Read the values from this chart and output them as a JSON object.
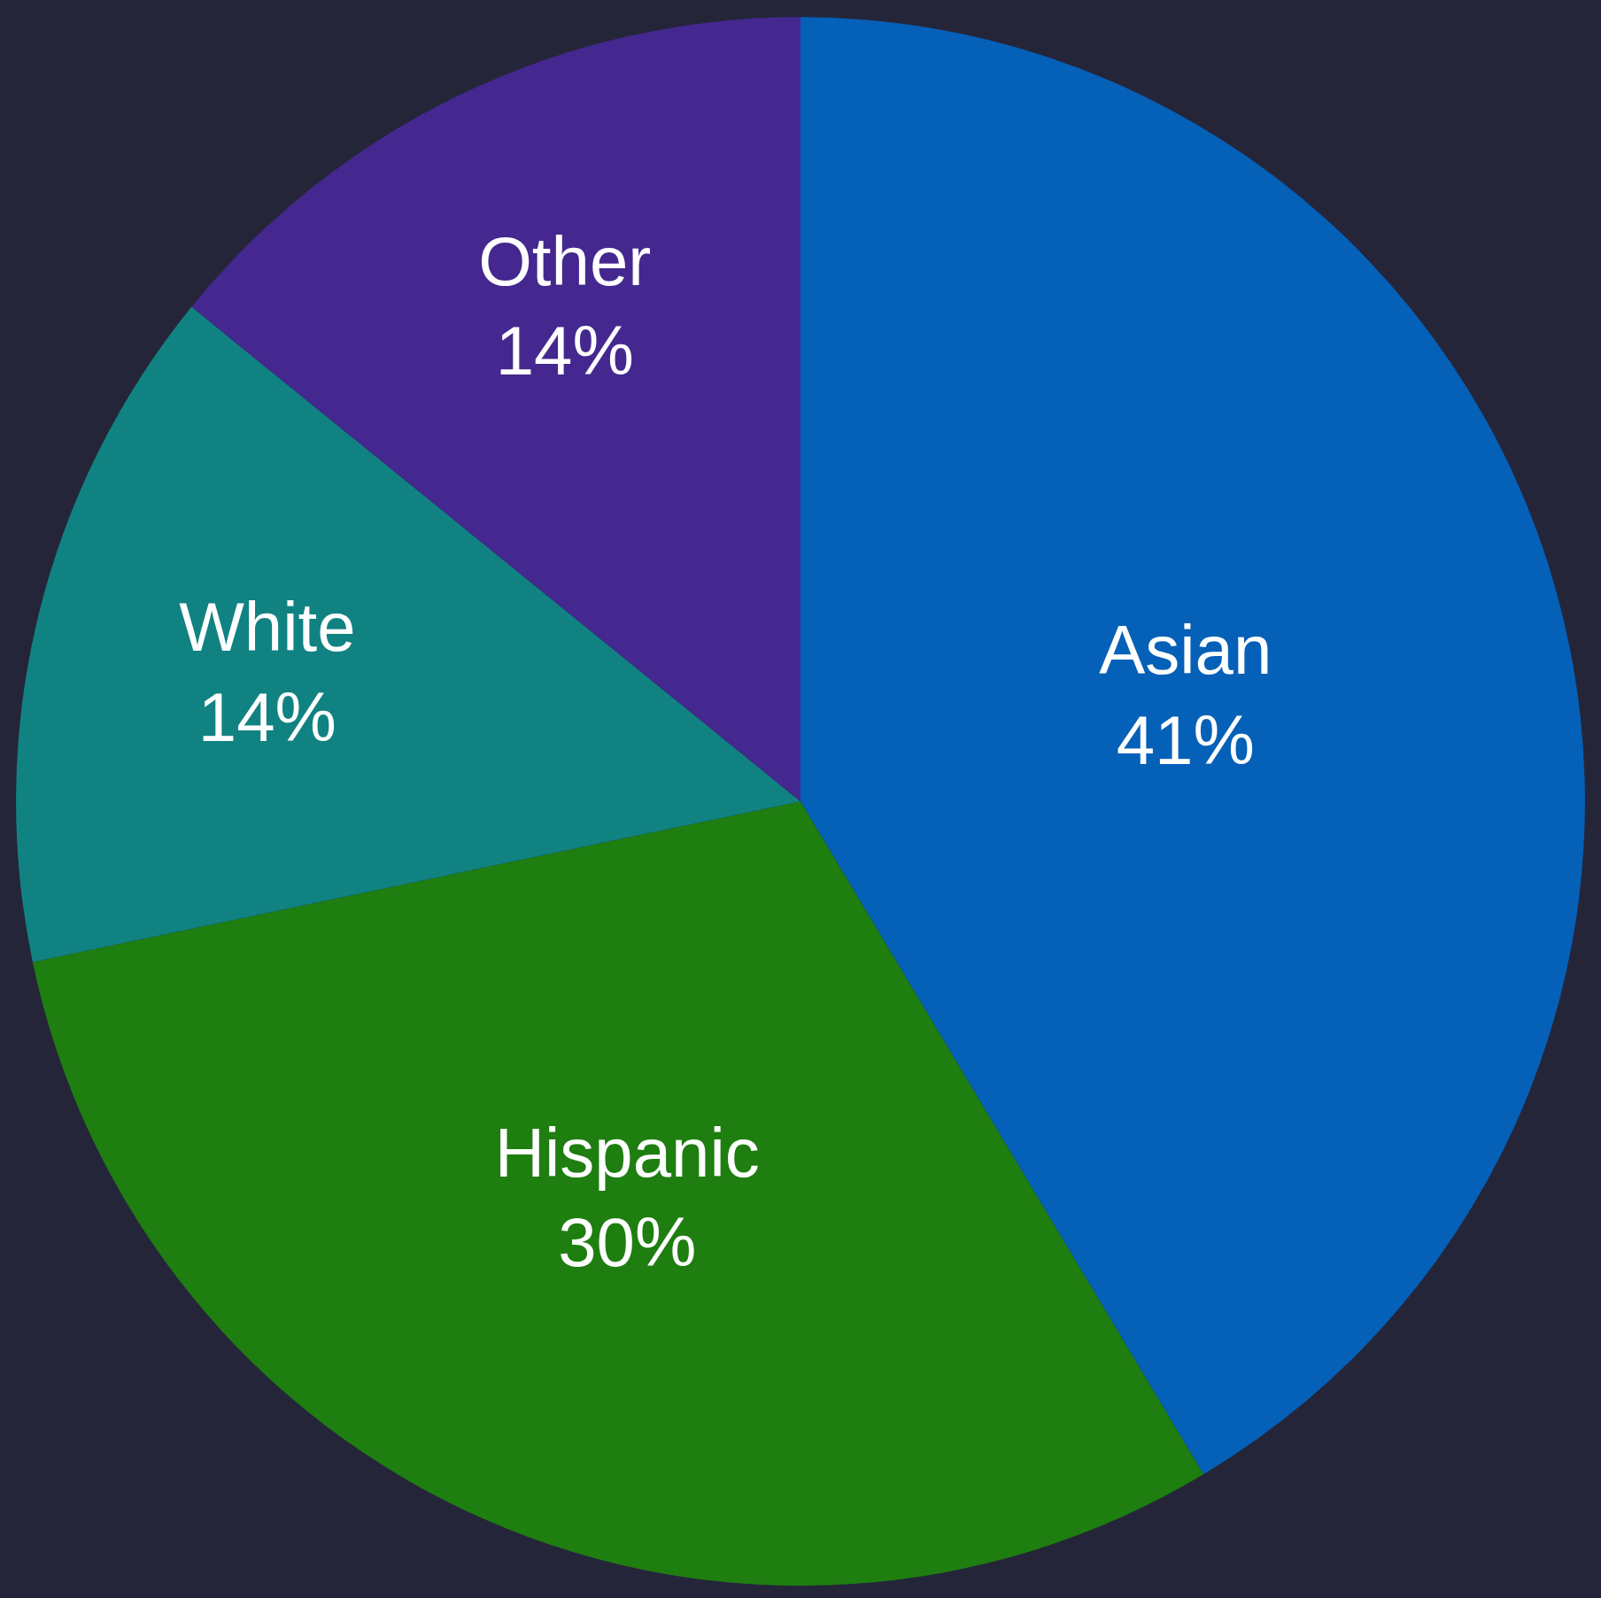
{
  "chart_data": {
    "type": "pie",
    "categories": [
      "Asian",
      "Hispanic",
      "White",
      "Other"
    ],
    "values": [
      41,
      30,
      14,
      14
    ],
    "value_labels": [
      "41%",
      "30%",
      "14%",
      "14%"
    ],
    "colors": [
      "#0560b8",
      "#1e7e10",
      "#118282",
      "#44288f"
    ],
    "legend": false
  }
}
